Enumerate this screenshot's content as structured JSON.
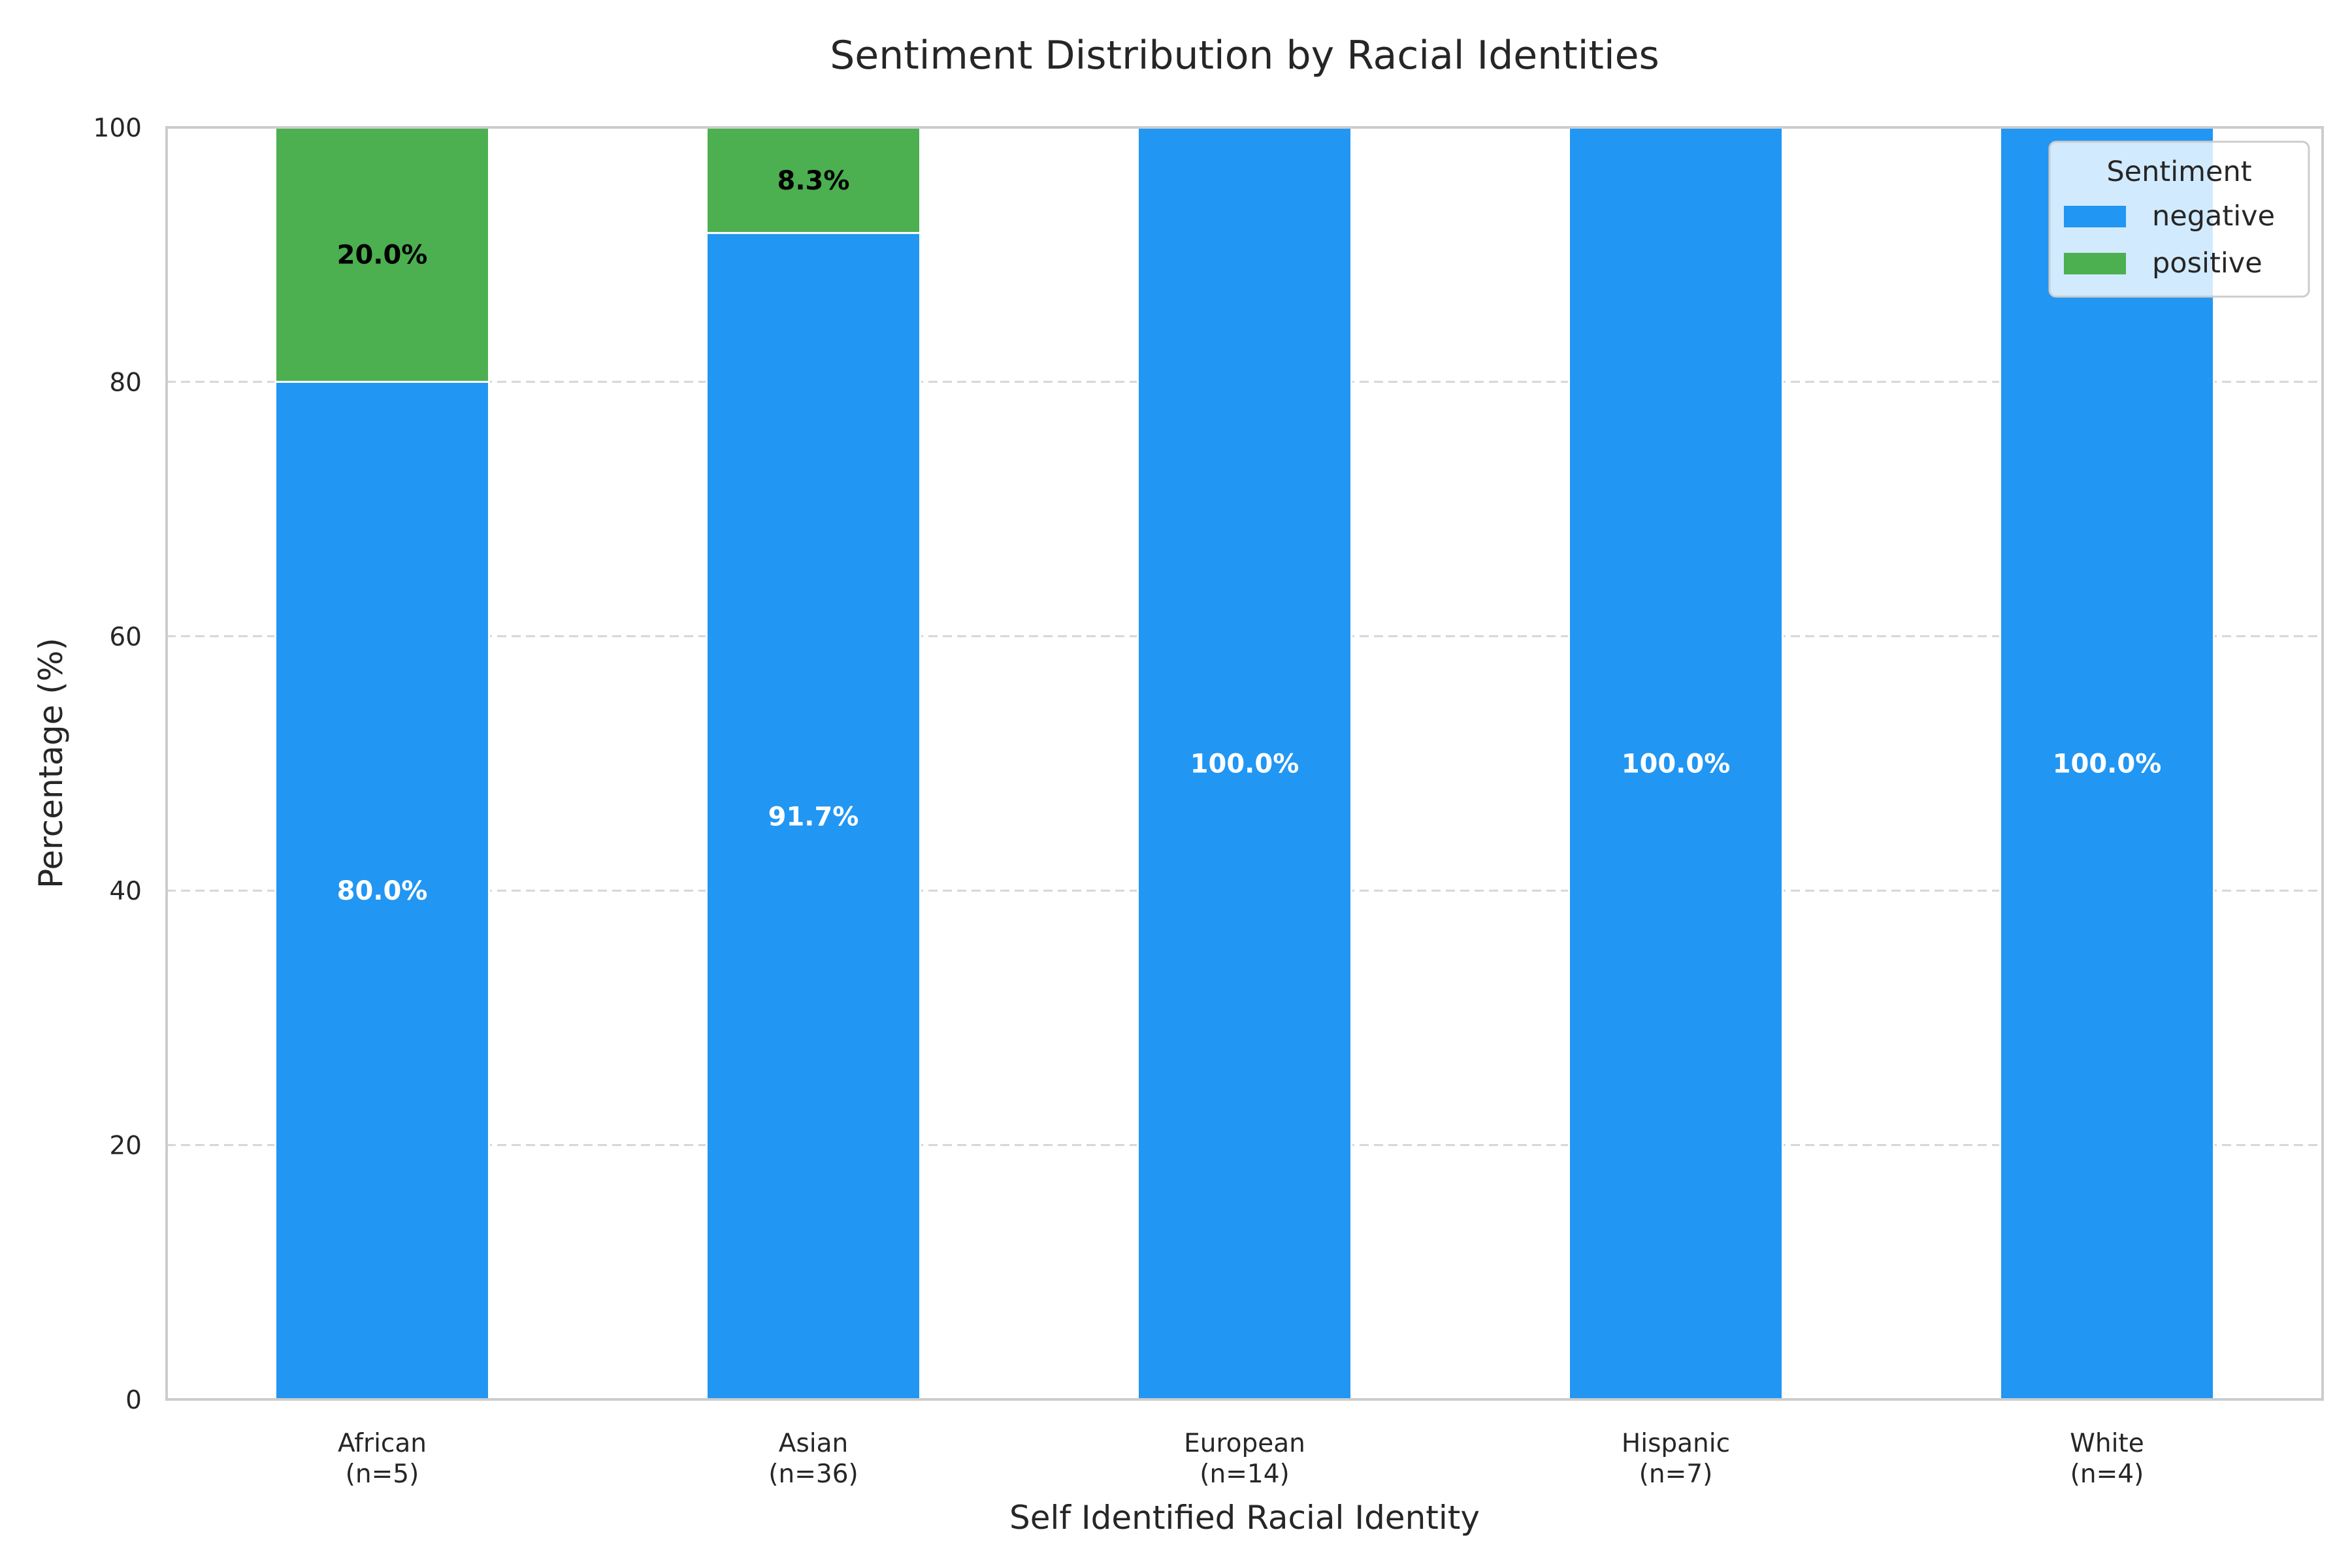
{
  "chart_data": {
    "type": "bar",
    "stacked": true,
    "title": "Sentiment Distribution by Racial Identities",
    "xlabel": "Self Identified Racial Identity",
    "ylabel": "Percentage (%)",
    "ylim": [
      0,
      100
    ],
    "yticks": [
      0,
      20,
      40,
      60,
      80,
      100
    ],
    "grid": "y, dashed",
    "categories": [
      [
        "African",
        "(n=5)"
      ],
      [
        "Asian",
        "(n=36)"
      ],
      [
        "European",
        "(n=14)"
      ],
      [
        "Hispanic",
        "(n=7)"
      ],
      [
        "White",
        "(n=4)"
      ]
    ],
    "series": [
      {
        "name": "negative",
        "color": "#2196F3",
        "values": [
          80.0,
          91.7,
          100.0,
          100.0,
          100.0
        ],
        "labels": [
          "80.0%",
          "91.7%",
          "100.0%",
          "100.0%",
          "100.0%"
        ],
        "label_color": "#ffffff"
      },
      {
        "name": "positive",
        "color": "#4CAF50",
        "values": [
          20.0,
          8.3,
          0,
          0,
          0
        ],
        "labels": [
          "20.0%",
          "8.3%",
          "",
          "",
          ""
        ],
        "label_color": "#000000"
      }
    ],
    "legend": {
      "title": "Sentiment",
      "placement": "top-right"
    }
  }
}
